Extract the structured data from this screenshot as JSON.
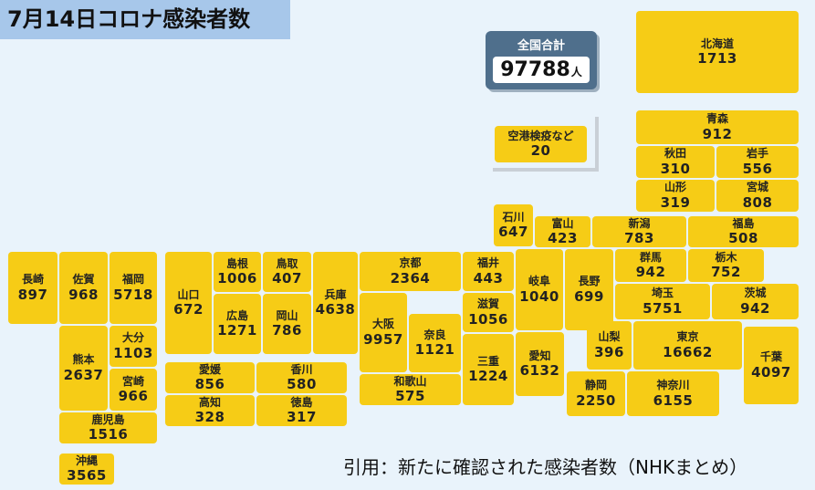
{
  "header": {
    "title": "7月14日コロナ感染者数"
  },
  "total": {
    "label": "全国合計",
    "value": "97788",
    "unit": "人"
  },
  "airport": {
    "name": "空港検疫など",
    "value": "20"
  },
  "prefectures": [
    {
      "id": "hokkaido",
      "name": "北海道",
      "value": "1713"
    },
    {
      "id": "aomori",
      "name": "青森",
      "value": "912"
    },
    {
      "id": "akita",
      "name": "秋田",
      "value": "310"
    },
    {
      "id": "iwate",
      "name": "岩手",
      "value": "556"
    },
    {
      "id": "yamagata",
      "name": "山形",
      "value": "319"
    },
    {
      "id": "miyagi",
      "name": "宮城",
      "value": "808"
    },
    {
      "id": "ishikawa",
      "name": "石川",
      "value": "647"
    },
    {
      "id": "toyama",
      "name": "富山",
      "value": "423"
    },
    {
      "id": "niigata",
      "name": "新潟",
      "value": "783"
    },
    {
      "id": "fukushima",
      "name": "福島",
      "value": "508"
    },
    {
      "id": "gunma",
      "name": "群馬",
      "value": "942"
    },
    {
      "id": "tochigi",
      "name": "栃木",
      "value": "752"
    },
    {
      "id": "fukui",
      "name": "福井",
      "value": "443"
    },
    {
      "id": "kyoto",
      "name": "京都",
      "value": "2364"
    },
    {
      "id": "gifu",
      "name": "岐阜",
      "value": "1040"
    },
    {
      "id": "nagano",
      "name": "長野",
      "value": "699"
    },
    {
      "id": "saitama",
      "name": "埼玉",
      "value": "5751"
    },
    {
      "id": "ibaraki",
      "name": "茨城",
      "value": "942"
    },
    {
      "id": "shiga",
      "name": "滋賀",
      "value": "1056"
    },
    {
      "id": "osaka",
      "name": "大阪",
      "value": "9957"
    },
    {
      "id": "nara",
      "name": "奈良",
      "value": "1121"
    },
    {
      "id": "mie",
      "name": "三重",
      "value": "1224"
    },
    {
      "id": "aichi",
      "name": "愛知",
      "value": "6132"
    },
    {
      "id": "yamanashi",
      "name": "山梨",
      "value": "396"
    },
    {
      "id": "tokyo",
      "name": "東京",
      "value": "16662"
    },
    {
      "id": "chiba",
      "name": "千葉",
      "value": "4097"
    },
    {
      "id": "wakayama",
      "name": "和歌山",
      "value": "575"
    },
    {
      "id": "shizuoka",
      "name": "静岡",
      "value": "2250"
    },
    {
      "id": "kanagawa",
      "name": "神奈川",
      "value": "6155"
    },
    {
      "id": "hyogo",
      "name": "兵庫",
      "value": "4638"
    },
    {
      "id": "shimane",
      "name": "島根",
      "value": "1006"
    },
    {
      "id": "tottori",
      "name": "鳥取",
      "value": "407"
    },
    {
      "id": "yamaguchi",
      "name": "山口",
      "value": "672"
    },
    {
      "id": "hiroshima",
      "name": "広島",
      "value": "1271"
    },
    {
      "id": "okayama",
      "name": "岡山",
      "value": "786"
    },
    {
      "id": "ehime",
      "name": "愛媛",
      "value": "856"
    },
    {
      "id": "kagawa",
      "name": "香川",
      "value": "580"
    },
    {
      "id": "kochi",
      "name": "高知",
      "value": "328"
    },
    {
      "id": "tokushima",
      "name": "徳島",
      "value": "317"
    },
    {
      "id": "nagasaki",
      "name": "長崎",
      "value": "897"
    },
    {
      "id": "saga",
      "name": "佐賀",
      "value": "968"
    },
    {
      "id": "fukuoka",
      "name": "福岡",
      "value": "5718"
    },
    {
      "id": "kumamoto",
      "name": "熊本",
      "value": "2637"
    },
    {
      "id": "oita",
      "name": "大分",
      "value": "1103"
    },
    {
      "id": "miyazaki",
      "name": "宮崎",
      "value": "966"
    },
    {
      "id": "kagoshima",
      "name": "鹿児島",
      "value": "1516"
    },
    {
      "id": "okinawa",
      "name": "沖縄",
      "value": "3565"
    }
  ],
  "citation": "引用：新たに確認された感染者数（NHKまとめ）"
}
